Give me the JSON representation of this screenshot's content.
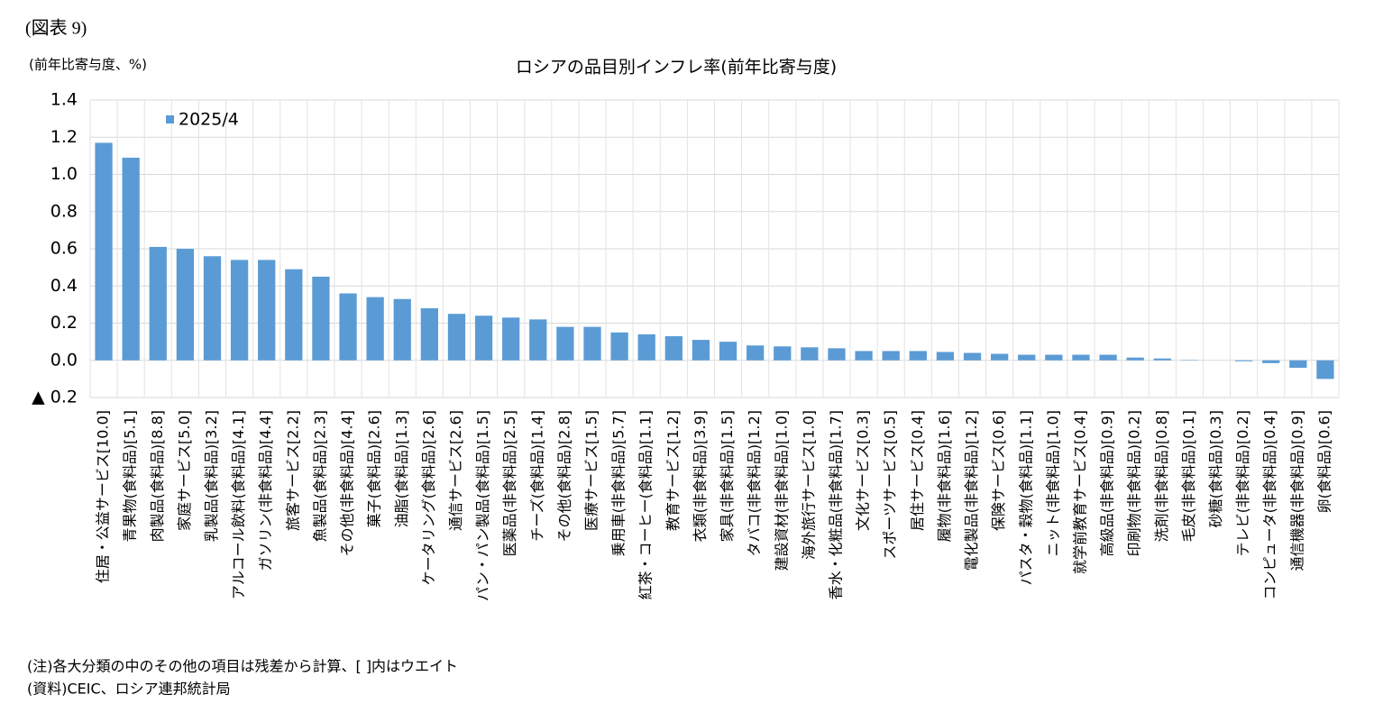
{
  "header": "(図表 9)",
  "chart_data": {
    "type": "bar",
    "title": "ロシアの品目別インフレ率(前年比寄与度)",
    "y_label": "(前年比寄与度、%)",
    "categories": [
      "住居・公益サービス[10.0]",
      "青果物(食料品)[5.1]",
      "肉製品(食料品)[8.8]",
      "家庭サービス[5.0]",
      "乳製品(食料品)[3.2]",
      "アルコール飲料(食料品)[4.1]",
      "ガソリン(非食料品)[4.4]",
      "旅客サービス[2.2]",
      "魚製品(食料品)[2.3]",
      "その他(非食料品)[4.4]",
      "菓子(食料品)[2.6]",
      "油脂(食料品)[1.3]",
      "ケータリング(食料品)[2.6]",
      "通信サービス[2.6]",
      "パン・パン製品(食料品)[1.5]",
      "医薬品(非食料品)[2.5]",
      "チーズ(食料品)[1.4]",
      "その他(食料品)[2.8]",
      "医療サービス[1.5]",
      "乗用車(非食料品)[5.7]",
      "紅茶・コーヒー(食料品)[1.1]",
      "教育サービス[1.2]",
      "衣類(非食料品)[3.9]",
      "家具(非食料品)[1.5]",
      "タバコ(非食料品)[1.2]",
      "建設資材(非食料品)[1.0]",
      "海外旅行サービス[1.0]",
      "香水・化粧品(非食料品)[1.7]",
      "文化サービス[0.3]",
      "スポーツサービス[0.5]",
      "居住サービス[0.4]",
      "履物(非食料品)[1.6]",
      "電化製品(非食料品)[1.2]",
      "保険サービス[0.6]",
      "パスタ・穀物(食料品)[1.1]",
      "ニット(非食料品)[1.0]",
      "就学前教育サービス[0.4]",
      "高級品(非食料品)[0.9]",
      "印刷物(非食料品)[0.2]",
      "洗剤(非食料品)[0.8]",
      "毛皮(非食料品)[0.1]",
      "砂糖(食料品)[0.3]",
      "テレビ(非食料品)[0.2]",
      "コンピュータ(非食料品)[0.4]",
      "通信機器(非食料品)[0.9]",
      "卵(食料品)[0.6]"
    ],
    "series": [
      {
        "name": "2025/4",
        "color": "#5b9bd5",
        "values": [
          1.17,
          1.09,
          0.61,
          0.6,
          0.56,
          0.54,
          0.54,
          0.49,
          0.45,
          0.36,
          0.34,
          0.33,
          0.28,
          0.25,
          0.24,
          0.23,
          0.22,
          0.18,
          0.18,
          0.15,
          0.14,
          0.13,
          0.11,
          0.1,
          0.08,
          0.075,
          0.07,
          0.065,
          0.05,
          0.05,
          0.05,
          0.045,
          0.04,
          0.035,
          0.03,
          0.03,
          0.03,
          0.03,
          0.015,
          0.01,
          0.002,
          0.0,
          -0.005,
          -0.015,
          -0.04,
          -0.1
        ]
      }
    ],
    "ylim": [
      -0.2,
      1.4
    ],
    "yticks": [
      {
        "value": -0.2,
        "label": "▲ 0.2"
      },
      {
        "value": 0,
        "label": "0.0"
      },
      0.2,
      0.4,
      0.6,
      0.8,
      {
        "value": 1,
        "label": "1.0"
      },
      1.2,
      1.4
    ],
    "grid": true,
    "legend": "top-left",
    "notes": [
      "(注)各大分類の中のその他の項目は残差から計算、[ ]内はウエイト",
      "(資料)CEIC、ロシア連邦統計局"
    ]
  }
}
